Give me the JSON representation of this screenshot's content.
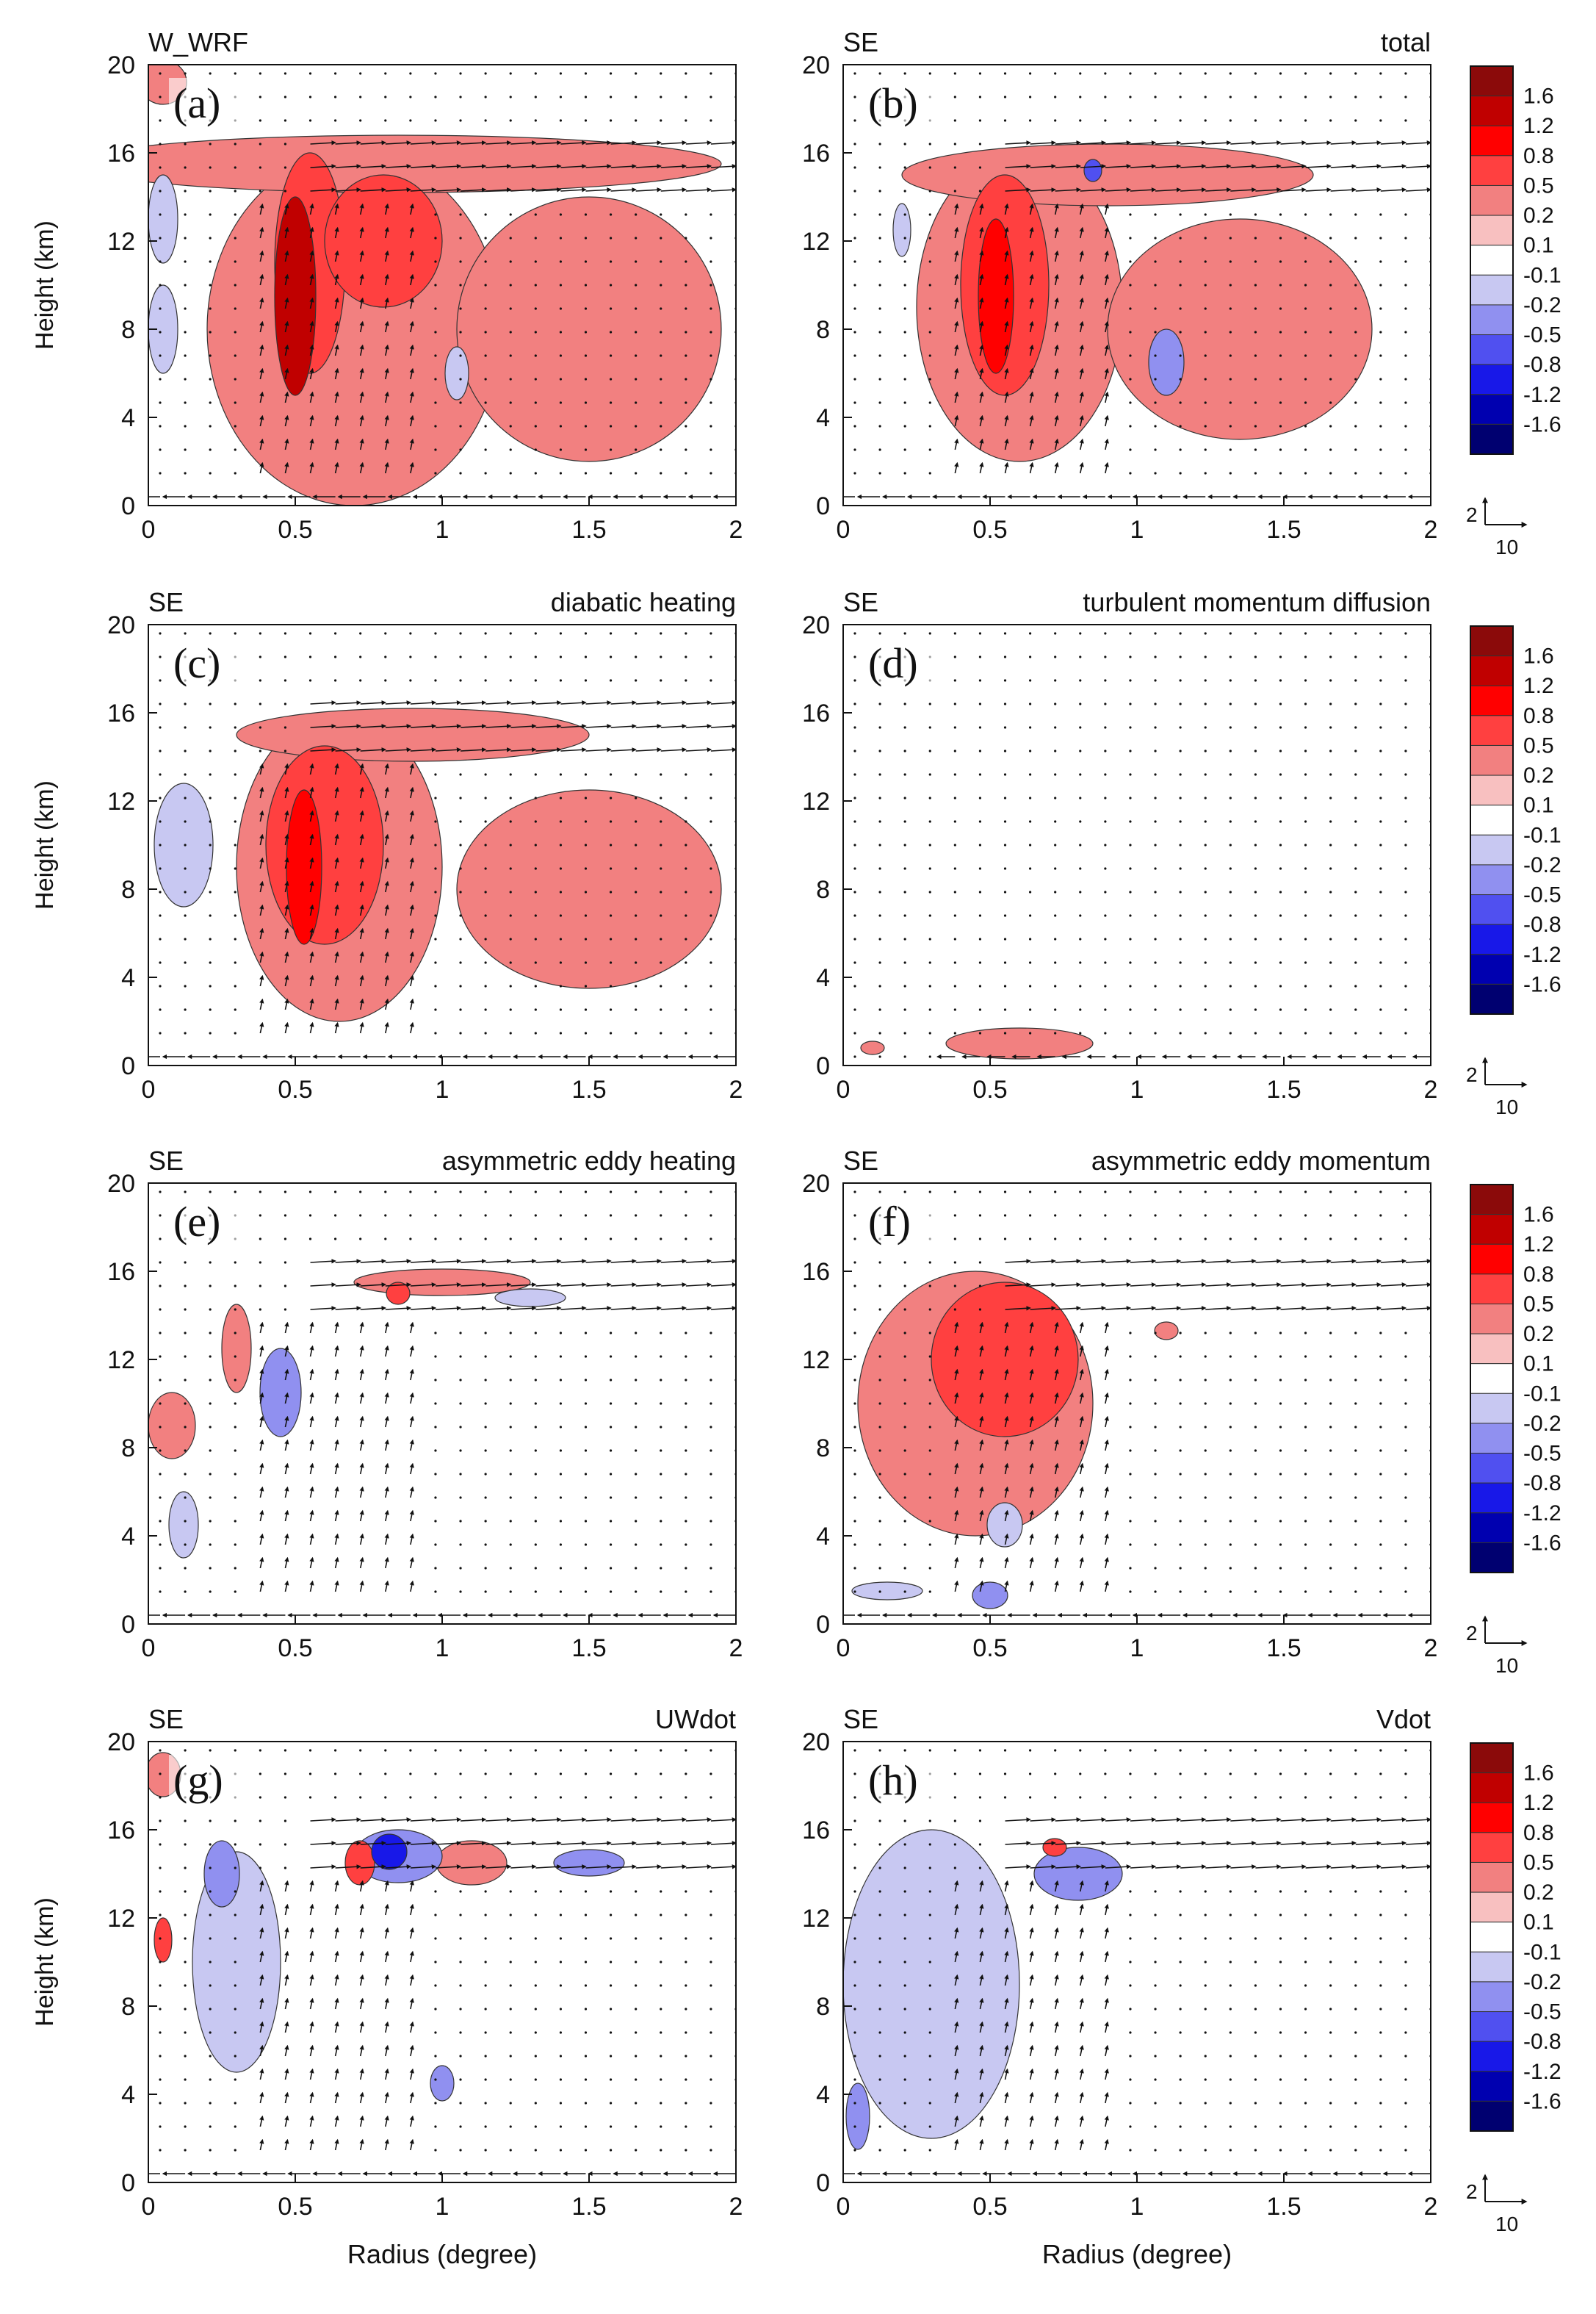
{
  "chart_data": [
    {
      "type": "contour-vector",
      "panel": "(a)",
      "title_left": "W_WRF",
      "title_right": "",
      "xlabel": "",
      "ylabel": "Height (km)",
      "xlim": [
        0,
        2
      ],
      "ylim": [
        0,
        20
      ],
      "xticks": [
        "0",
        "0.5",
        "1",
        "1.5",
        "2"
      ],
      "yticks": [
        "0",
        "4",
        "8",
        "12",
        "16",
        "20"
      ],
      "features": [
        {
          "x": 0.5,
          "y": 9.5,
          "rx": 0.07,
          "ry": 4.5,
          "level": 1.2
        },
        {
          "x": 0.55,
          "y": 11,
          "rx": 0.12,
          "ry": 5,
          "level": 0.5
        },
        {
          "x": 0.8,
          "y": 12,
          "rx": 0.2,
          "ry": 3,
          "level": 0.5
        },
        {
          "x": 0.7,
          "y": 8,
          "rx": 0.5,
          "ry": 8,
          "level": 0.2
        },
        {
          "x": 1.5,
          "y": 8,
          "rx": 0.45,
          "ry": 6,
          "level": 0.2
        },
        {
          "x": 0.85,
          "y": 15.5,
          "rx": 1.1,
          "ry": 1.3,
          "level": 0.2
        },
        {
          "x": 0.05,
          "y": 8,
          "rx": 0.05,
          "ry": 2,
          "level": -0.2
        },
        {
          "x": 0.05,
          "y": 13,
          "rx": 0.05,
          "ry": 2,
          "level": -0.2
        },
        {
          "x": 1.05,
          "y": 6,
          "rx": 0.04,
          "ry": 1.2,
          "level": -0.2
        },
        {
          "x": 0.05,
          "y": 19.2,
          "rx": 0.08,
          "ry": 1,
          "level": 0.2
        }
      ]
    },
    {
      "type": "contour-vector",
      "panel": "(b)",
      "title_left": "SE",
      "title_right": "total",
      "xlabel": "",
      "ylabel": "",
      "xlim": [
        0,
        2
      ],
      "ylim": [
        0,
        20
      ],
      "xticks": [
        "0",
        "0.5",
        "1",
        "1.5",
        "2"
      ],
      "yticks": [
        "0",
        "4",
        "8",
        "12",
        "16",
        "20"
      ],
      "features": [
        {
          "x": 0.52,
          "y": 9.5,
          "rx": 0.06,
          "ry": 3.5,
          "level": 0.8
        },
        {
          "x": 0.55,
          "y": 10,
          "rx": 0.15,
          "ry": 5,
          "level": 0.5
        },
        {
          "x": 0.6,
          "y": 9,
          "rx": 0.35,
          "ry": 7,
          "level": 0.2
        },
        {
          "x": 1.35,
          "y": 8,
          "rx": 0.45,
          "ry": 5,
          "level": 0.2
        },
        {
          "x": 0.9,
          "y": 15,
          "rx": 0.7,
          "ry": 1.4,
          "level": 0.2
        },
        {
          "x": 1.1,
          "y": 6.5,
          "rx": 0.06,
          "ry": 1.5,
          "level": -0.5
        },
        {
          "x": 0.2,
          "y": 12.5,
          "rx": 0.03,
          "ry": 1.2,
          "level": -0.2
        },
        {
          "x": 0.85,
          "y": 15.2,
          "rx": 0.03,
          "ry": 0.5,
          "level": -0.8
        }
      ]
    },
    {
      "type": "contour-vector",
      "panel": "(c)",
      "title_left": "SE",
      "title_right": "diabatic heating",
      "xlabel": "",
      "ylabel": "Height (km)",
      "xlim": [
        0,
        2
      ],
      "ylim": [
        0,
        20
      ],
      "xticks": [
        "0",
        "0.5",
        "1",
        "1.5",
        "2"
      ],
      "yticks": [
        "0",
        "4",
        "8",
        "12",
        "16",
        "20"
      ],
      "features": [
        {
          "x": 0.53,
          "y": 9,
          "rx": 0.06,
          "ry": 3.5,
          "level": 0.8
        },
        {
          "x": 0.6,
          "y": 10,
          "rx": 0.2,
          "ry": 4.5,
          "level": 0.5
        },
        {
          "x": 0.65,
          "y": 9,
          "rx": 0.35,
          "ry": 7,
          "level": 0.2
        },
        {
          "x": 1.5,
          "y": 8,
          "rx": 0.45,
          "ry": 4.5,
          "level": 0.2
        },
        {
          "x": 0.9,
          "y": 15,
          "rx": 0.6,
          "ry": 1.2,
          "level": 0.2
        },
        {
          "x": 0.12,
          "y": 10,
          "rx": 0.1,
          "ry": 2.8,
          "level": -0.2
        }
      ]
    },
    {
      "type": "contour-vector",
      "panel": "(d)",
      "title_left": "SE",
      "title_right": "turbulent momentum diffusion",
      "xlabel": "",
      "ylabel": "",
      "xlim": [
        0,
        2
      ],
      "ylim": [
        0,
        20
      ],
      "xticks": [
        "0",
        "0.5",
        "1",
        "1.5",
        "2"
      ],
      "yticks": [
        "0",
        "4",
        "8",
        "12",
        "16",
        "20"
      ],
      "features": [
        {
          "x": 0.6,
          "y": 1,
          "rx": 0.25,
          "ry": 0.7,
          "level": 0.2
        },
        {
          "x": 0.1,
          "y": 0.8,
          "rx": 0.04,
          "ry": 0.3,
          "level": 0.2
        }
      ]
    },
    {
      "type": "contour-vector",
      "panel": "(e)",
      "title_left": "SE",
      "title_right": "asymmetric eddy heating",
      "xlabel": "",
      "ylabel": "",
      "xlim": [
        0,
        2
      ],
      "ylim": [
        0,
        20
      ],
      "xticks": [
        "0",
        "0.5",
        "1",
        "1.5",
        "2"
      ],
      "yticks": [
        "0",
        "4",
        "8",
        "12",
        "16",
        "20"
      ],
      "features": [
        {
          "x": 0.45,
          "y": 10.5,
          "rx": 0.07,
          "ry": 2,
          "level": -0.5
        },
        {
          "x": 0.3,
          "y": 12.5,
          "rx": 0.05,
          "ry": 2,
          "level": 0.2
        },
        {
          "x": 0.08,
          "y": 9,
          "rx": 0.08,
          "ry": 1.5,
          "level": 0.2
        },
        {
          "x": 0.12,
          "y": 4.5,
          "rx": 0.05,
          "ry": 1.5,
          "level": -0.2
        },
        {
          "x": 1.0,
          "y": 15.5,
          "rx": 0.3,
          "ry": 0.6,
          "level": 0.2
        },
        {
          "x": 0.85,
          "y": 15,
          "rx": 0.04,
          "ry": 0.5,
          "level": 0.5
        },
        {
          "x": 1.3,
          "y": 14.8,
          "rx": 0.12,
          "ry": 0.4,
          "level": -0.2
        }
      ]
    },
    {
      "type": "contour-vector",
      "panel": "(f)",
      "title_left": "SE",
      "title_right": "asymmetric eddy momentum",
      "xlabel": "",
      "ylabel": "",
      "xlim": [
        0,
        2
      ],
      "ylim": [
        0,
        20
      ],
      "xticks": [
        "0",
        "0.5",
        "1",
        "1.5",
        "2"
      ],
      "yticks": [
        "0",
        "4",
        "8",
        "12",
        "16",
        "20"
      ],
      "features": [
        {
          "x": 0.55,
          "y": 12,
          "rx": 0.25,
          "ry": 3.5,
          "level": 0.5
        },
        {
          "x": 0.45,
          "y": 10,
          "rx": 0.4,
          "ry": 6,
          "level": 0.2
        },
        {
          "x": 0.5,
          "y": 1.3,
          "rx": 0.06,
          "ry": 0.6,
          "level": -0.5
        },
        {
          "x": 0.55,
          "y": 4.5,
          "rx": 0.06,
          "ry": 1,
          "level": -0.2
        },
        {
          "x": 0.15,
          "y": 1.5,
          "rx": 0.12,
          "ry": 0.4,
          "level": -0.2
        },
        {
          "x": 1.1,
          "y": 13.3,
          "rx": 0.04,
          "ry": 0.4,
          "level": 0.2
        }
      ]
    },
    {
      "type": "contour-vector",
      "panel": "(g)",
      "title_left": "SE",
      "title_right": "UWdot",
      "xlabel": "Radius (degree)",
      "ylabel": "Height (km)",
      "xlim": [
        0,
        2
      ],
      "ylim": [
        0,
        20
      ],
      "xticks": [
        "0",
        "0.5",
        "1",
        "1.5",
        "2"
      ],
      "yticks": [
        "0",
        "4",
        "8",
        "12",
        "16",
        "20"
      ],
      "features": [
        {
          "x": 0.82,
          "y": 15,
          "rx": 0.06,
          "ry": 0.8,
          "level": -1.2
        },
        {
          "x": 0.85,
          "y": 14.8,
          "rx": 0.15,
          "ry": 1.2,
          "level": -0.5
        },
        {
          "x": 0.72,
          "y": 14.5,
          "rx": 0.05,
          "ry": 1,
          "level": 0.5
        },
        {
          "x": 0.25,
          "y": 14,
          "rx": 0.06,
          "ry": 1.5,
          "level": -0.5
        },
        {
          "x": 0.3,
          "y": 10,
          "rx": 0.15,
          "ry": 5,
          "level": -0.2
        },
        {
          "x": 0.05,
          "y": 11,
          "rx": 0.03,
          "ry": 1,
          "level": 0.5
        },
        {
          "x": 0.05,
          "y": 18.5,
          "rx": 0.06,
          "ry": 1,
          "level": 0.2
        },
        {
          "x": 1.5,
          "y": 14.5,
          "rx": 0.12,
          "ry": 0.6,
          "level": -0.5
        },
        {
          "x": 1.0,
          "y": 4.5,
          "rx": 0.04,
          "ry": 0.8,
          "level": -0.5
        },
        {
          "x": 1.1,
          "y": 14.5,
          "rx": 0.12,
          "ry": 1,
          "level": 0.2
        }
      ]
    },
    {
      "type": "contour-vector",
      "panel": "(h)",
      "title_left": "SE",
      "title_right": "Vdot",
      "xlabel": "Radius (degree)",
      "ylabel": "",
      "xlim": [
        0,
        2
      ],
      "ylim": [
        0,
        20
      ],
      "xticks": [
        "0",
        "0.5",
        "1",
        "1.5",
        "2"
      ],
      "yticks": [
        "0",
        "4",
        "8",
        "12",
        "16",
        "20"
      ],
      "features": [
        {
          "x": 0.3,
          "y": 9,
          "rx": 0.3,
          "ry": 7,
          "level": -0.2
        },
        {
          "x": 0.8,
          "y": 14,
          "rx": 0.15,
          "ry": 1.2,
          "level": -0.5
        },
        {
          "x": 0.05,
          "y": 3,
          "rx": 0.04,
          "ry": 1.5,
          "level": -0.5
        },
        {
          "x": 0.72,
          "y": 15.2,
          "rx": 0.04,
          "ry": 0.4,
          "level": 0.5
        }
      ]
    }
  ],
  "colorbar": {
    "labels": [
      "1.6",
      "1.2",
      "0.8",
      "0.5",
      "0.2",
      "0.1",
      "-0.1",
      "-0.2",
      "-0.5",
      "-0.8",
      "-1.2",
      "-1.6"
    ],
    "colors": [
      "#8b0a0a",
      "#c00000",
      "#ff0000",
      "#ff4040",
      "#f28080",
      "#f8c0c0",
      "#ffffff",
      "#c8c8f2",
      "#9090f0",
      "#5050f0",
      "#1818e8",
      "#0000b0",
      "#000070"
    ],
    "vector_reference": {
      "vertical": "2",
      "horizontal": "10"
    }
  }
}
